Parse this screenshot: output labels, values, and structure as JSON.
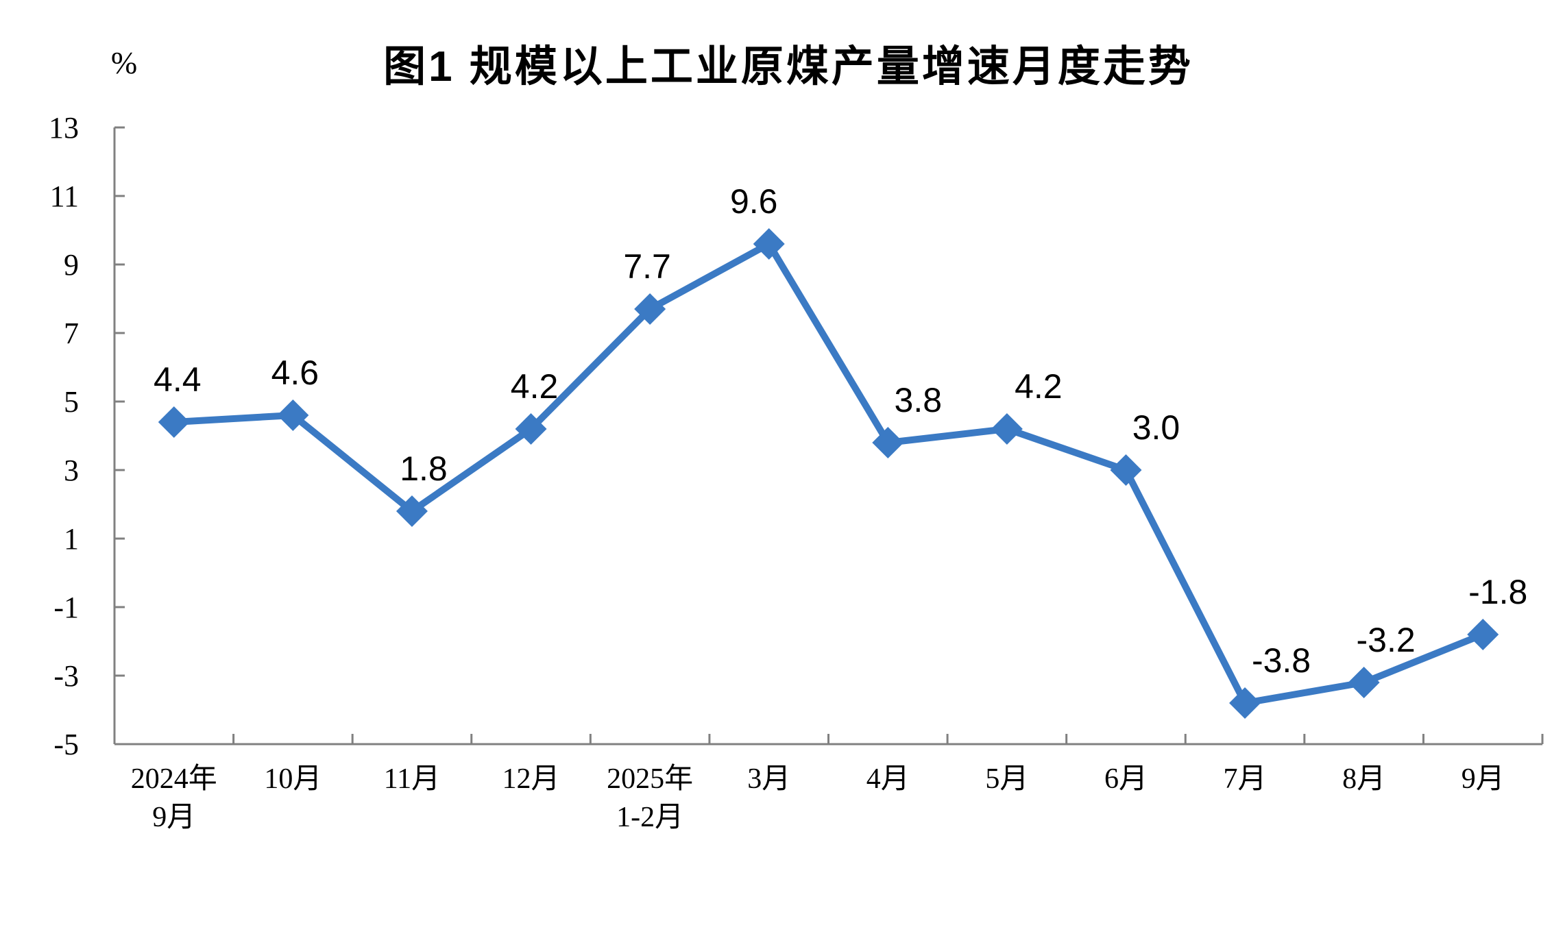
{
  "page": {
    "background": "#ffffff"
  },
  "chart_data": {
    "type": "line",
    "title": "图1  规模以上工业原煤产量增速月度走势",
    "unit_label": "%",
    "categories": [
      "2024年\n9月",
      "10月",
      "11月",
      "12月",
      "2025年\n1-2月",
      "3月",
      "4月",
      "5月",
      "6月",
      "7月",
      "8月",
      "9月"
    ],
    "values": [
      4.4,
      4.6,
      1.8,
      4.2,
      7.7,
      9.6,
      3.8,
      4.2,
      3.0,
      -3.8,
      -3.2,
      -1.8
    ],
    "data_labels": [
      "4.4",
      "4.6",
      "1.8",
      "4.2",
      "7.7",
      "9.6",
      "3.8",
      "4.2",
      "3.0",
      "-3.8",
      "-3.2",
      "-1.8"
    ],
    "xlabel": "",
    "ylabel": "%",
    "ylim": [
      -5,
      13
    ],
    "yticks": [
      13,
      11,
      9,
      7,
      5,
      3,
      1,
      -1,
      -3,
      -5
    ],
    "grid": false,
    "legend": "none",
    "line_color": "#3B7AC4",
    "axis_color": "#808080",
    "text_color": "#000000",
    "marker": "diamond",
    "label_offsets_x": [
      5,
      3,
      17,
      5,
      -4,
      -22,
      44,
      46,
      44,
      53,
      32,
      22
    ],
    "label_offset_y": -45
  }
}
